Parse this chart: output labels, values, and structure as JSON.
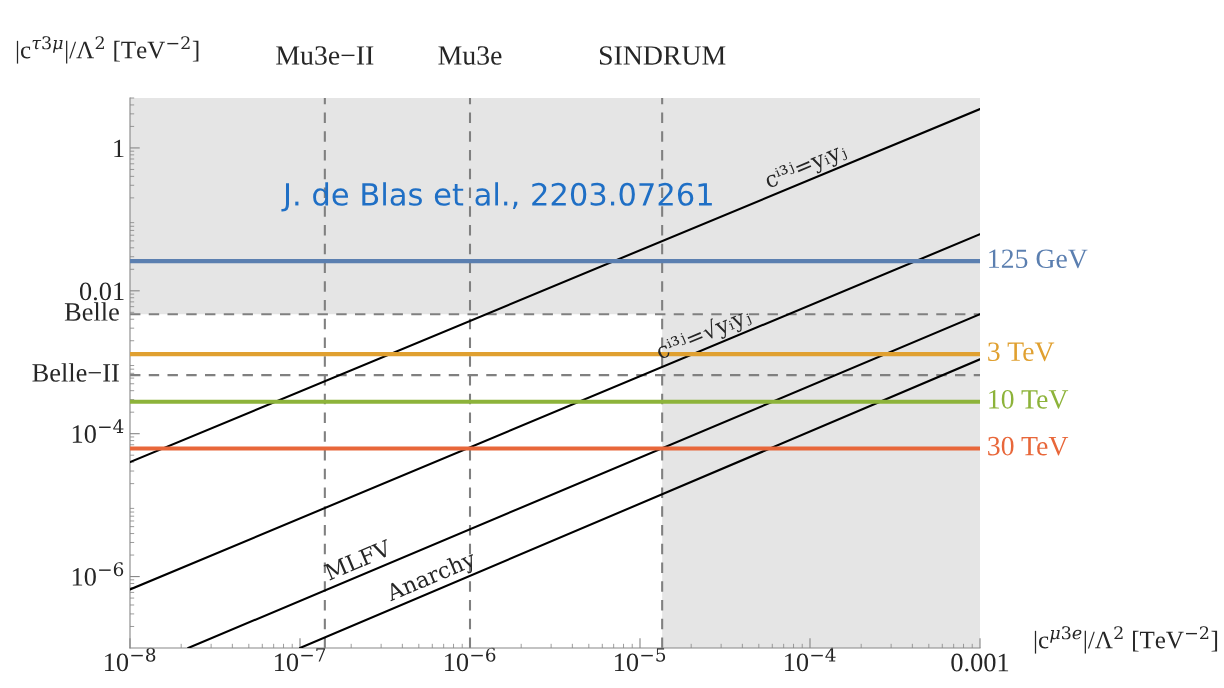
{
  "chart_data": {
    "type": "line",
    "xlabel": "|c$^{μ3e}$|/Λ$^{2}$ [TeV$^{−2}$]",
    "ylabel": "|c$^{τ3μ}$|/Λ$^{2}$ [TeV$^{−2}$]",
    "log": "xy",
    "xlim": [
      1e-08,
      0.001
    ],
    "ylim": [
      1e-07,
      5
    ],
    "xticks": [
      {
        "value": 1e-08,
        "label": "10$^{−8}$"
      },
      {
        "value": 1e-07,
        "label": "10$^{−7}$"
      },
      {
        "value": 1e-06,
        "label": "10$^{−6}$"
      },
      {
        "value": 1e-05,
        "label": "10$^{−5}$"
      },
      {
        "value": 0.0001,
        "label": "10$^{−4}$"
      },
      0.001
    ],
    "yticks": [
      1,
      0.01,
      {
        "value": 0.0001,
        "label": "10$^{−4}$"
      },
      {
        "value": 1e-06,
        "label": "10$^{−6}$"
      }
    ],
    "grid": false,
    "legend": false,
    "series": [
      {
        "name": "cⁱ³ʲ=yᵢyⱼ",
        "color": "#000000",
        "x": [
          1e-08,
          0.001
        ],
        "values": [
          4e-05,
          3.5
        ]
      },
      {
        "name": "cⁱ³ʲ=√yᵢyⱼ",
        "color": "#000000",
        "x": [
          1e-08,
          0.001
        ],
        "values": [
          6.6e-07,
          0.062
        ]
      },
      {
        "name": "MLFV",
        "color": "#000000",
        "x": [
          2.2e-08,
          0.001
        ],
        "values": [
          1e-07,
          0.0047
        ]
      },
      {
        "name": "Anarchy",
        "color": "#000000",
        "x": [
          1e-07,
          0.001
        ],
        "values": [
          1e-07,
          0.0011
        ]
      },
      {
        "name": "125 GeV",
        "color": "#5b7fb0",
        "x": [
          1e-08,
          0.001
        ],
        "values": [
          0.026,
          0.026
        ]
      },
      {
        "name": "3 TeV",
        "color": "#e0a030",
        "x": [
          1e-08,
          0.001
        ],
        "values": [
          0.0013,
          0.0013
        ]
      },
      {
        "name": "10 TeV",
        "color": "#8db33a",
        "x": [
          1e-08,
          0.001
        ],
        "values": [
          0.00028,
          0.00028
        ]
      },
      {
        "name": "30 TeV",
        "color": "#e8673a",
        "x": [
          1e-08,
          0.001
        ],
        "values": [
          6.2e-05,
          6.2e-05
        ]
      }
    ],
    "ref_lines": [
      {
        "axis": "x",
        "value": 1.4e-07,
        "label": "Mu3e−II",
        "color": "#808080",
        "line_style": "dashed"
      },
      {
        "axis": "x",
        "value": 1e-06,
        "label": "Mu3e",
        "color": "#808080",
        "line_style": "dashed"
      },
      {
        "axis": "x",
        "value": 1.35e-05,
        "label": "SINDRUM",
        "color": "#808080",
        "line_style": "dashed"
      },
      {
        "axis": "y",
        "value": 0.0047,
        "label": "Belle",
        "color": "#808080",
        "line_style": "dashed"
      },
      {
        "axis": "y",
        "value": 0.00066,
        "label": "Belle−II",
        "color": "#808080",
        "line_style": "dashed"
      }
    ],
    "bands": [
      {
        "axis": "y",
        "from": 0.0047,
        "to": 5,
        "color": "#e5e5e5"
      },
      {
        "axis": "x",
        "from": 1.35e-05,
        "to": 0.001,
        "color": "#e5e5e5"
      }
    ],
    "annotations": [
      "J. de Blas et al., 2203.07261"
    ]
  }
}
